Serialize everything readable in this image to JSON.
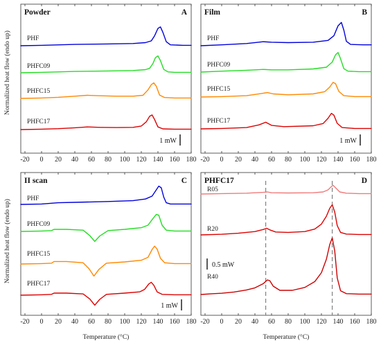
{
  "figure": {
    "ylabel": "Normalized heat flow (endo up)",
    "xlabel": "Temperature (°C)"
  },
  "chart_data": [
    {
      "type": "line",
      "title": "Powder",
      "panel": "A",
      "xlim": [
        -25,
        180
      ],
      "xticks": [
        -20,
        0,
        20,
        40,
        60,
        80,
        100,
        120,
        140,
        160,
        180
      ],
      "scalebar": "1 mW",
      "series": [
        {
          "name": "PHF",
          "color": "#0000dd",
          "x": [
            -25,
            0,
            40,
            80,
            110,
            125,
            132,
            136,
            140,
            143,
            146,
            150,
            155,
            170,
            180
          ],
          "y": [
            0.0,
            0.02,
            0.06,
            0.08,
            0.1,
            0.14,
            0.22,
            0.45,
            0.78,
            0.85,
            0.6,
            0.18,
            0.04,
            0.02,
            0.02
          ]
        },
        {
          "name": "PHFC09",
          "color": "#22dd22",
          "x": [
            -25,
            0,
            40,
            80,
            110,
            125,
            130,
            134,
            137,
            140,
            143,
            147,
            152,
            160,
            180
          ],
          "y": [
            0.0,
            0.02,
            0.06,
            0.08,
            0.1,
            0.14,
            0.2,
            0.42,
            0.68,
            0.76,
            0.55,
            0.15,
            0.04,
            0.02,
            0.02
          ]
        },
        {
          "name": "PHFC15",
          "color": "#ff8800",
          "x": [
            -25,
            0,
            20,
            40,
            55,
            70,
            90,
            110,
            122,
            128,
            132,
            135,
            138,
            142,
            148,
            160,
            180
          ],
          "y": [
            0.0,
            0.02,
            0.05,
            0.1,
            0.14,
            0.12,
            0.1,
            0.1,
            0.14,
            0.38,
            0.62,
            0.7,
            0.55,
            0.15,
            0.04,
            0.02,
            0.02
          ]
        },
        {
          "name": "PHFC17",
          "color": "#dd0000",
          "x": [
            -25,
            0,
            20,
            40,
            55,
            70,
            90,
            110,
            120,
            126,
            130,
            133,
            136,
            140,
            146,
            160,
            180
          ],
          "y": [
            0.0,
            0.02,
            0.04,
            0.08,
            0.12,
            0.1,
            0.09,
            0.1,
            0.16,
            0.35,
            0.6,
            0.66,
            0.45,
            0.12,
            0.03,
            0.02,
            0.02
          ]
        }
      ]
    },
    {
      "type": "line",
      "title": "Film",
      "panel": "B",
      "xlim": [
        -25,
        180
      ],
      "xticks": [
        -20,
        0,
        20,
        40,
        60,
        80,
        100,
        120,
        140,
        160,
        180
      ],
      "scalebar": "1 mW",
      "series": [
        {
          "name": "PHF",
          "color": "#0000dd",
          "x": [
            -25,
            0,
            30,
            50,
            60,
            80,
            110,
            128,
            135,
            140,
            144,
            147,
            150,
            155,
            170,
            180
          ],
          "y": [
            0.0,
            0.04,
            0.1,
            0.18,
            0.16,
            0.14,
            0.16,
            0.24,
            0.45,
            0.9,
            1.05,
            0.7,
            0.2,
            0.06,
            0.04,
            0.04
          ]
        },
        {
          "name": "PHFC09",
          "color": "#22dd22",
          "x": [
            -25,
            0,
            30,
            50,
            60,
            80,
            110,
            126,
            133,
            137,
            140,
            143,
            147,
            152,
            165,
            180
          ],
          "y": [
            0.0,
            0.04,
            0.08,
            0.12,
            0.1,
            0.1,
            0.14,
            0.22,
            0.45,
            0.78,
            0.88,
            0.6,
            0.15,
            0.04,
            0.02,
            0.02
          ]
        },
        {
          "name": "PHFC15",
          "color": "#ff8800",
          "x": [
            -25,
            0,
            30,
            48,
            55,
            62,
            80,
            110,
            124,
            130,
            134,
            137,
            141,
            147,
            160,
            180
          ],
          "y": [
            0.0,
            0.02,
            0.06,
            0.16,
            0.2,
            0.14,
            0.1,
            0.14,
            0.24,
            0.45,
            0.66,
            0.6,
            0.25,
            0.06,
            0.02,
            0.02
          ]
        },
        {
          "name": "PHFC17",
          "color": "#dd0000",
          "x": [
            -25,
            0,
            30,
            45,
            53,
            60,
            75,
            110,
            122,
            128,
            132,
            135,
            139,
            145,
            160,
            180
          ],
          "y": [
            0.0,
            0.02,
            0.06,
            0.18,
            0.3,
            0.16,
            0.1,
            0.14,
            0.24,
            0.48,
            0.7,
            0.62,
            0.25,
            0.06,
            0.02,
            0.02
          ]
        }
      ]
    },
    {
      "type": "line",
      "title": "II scan",
      "panel": "C",
      "xlim": [
        -25,
        180
      ],
      "xticks": [
        -20,
        0,
        20,
        40,
        60,
        80,
        100,
        120,
        140,
        160,
        180
      ],
      "scalebar": "1 mW",
      "series": [
        {
          "name": "PHF",
          "color": "#0000dd",
          "x": [
            -25,
            0,
            20,
            40,
            80,
            110,
            125,
            133,
            138,
            141,
            144,
            147,
            150,
            155,
            170,
            180
          ],
          "y": [
            0.0,
            0.02,
            0.08,
            0.1,
            0.14,
            0.18,
            0.26,
            0.4,
            0.7,
            0.88,
            0.8,
            0.35,
            0.08,
            0.02,
            0.02,
            0.02
          ]
        },
        {
          "name": "PHFC09",
          "color": "#22dd22",
          "x": [
            -25,
            0,
            12,
            15,
            30,
            50,
            58,
            64,
            70,
            80,
            100,
            120,
            128,
            134,
            138,
            141,
            145,
            150,
            160,
            180
          ],
          "y": [
            0.0,
            0.02,
            0.04,
            0.1,
            0.1,
            0.06,
            -0.2,
            -0.48,
            -0.22,
            0.04,
            0.1,
            0.18,
            0.3,
            0.62,
            0.82,
            0.78,
            0.3,
            0.06,
            0.02,
            0.02
          ]
        },
        {
          "name": "PHFC15",
          "color": "#ff8800",
          "x": [
            -25,
            0,
            12,
            15,
            30,
            50,
            57,
            63,
            69,
            78,
            100,
            120,
            128,
            133,
            136,
            139,
            143,
            148,
            160,
            180
          ],
          "y": [
            0.0,
            0.02,
            0.04,
            0.12,
            0.12,
            0.06,
            -0.22,
            -0.58,
            -0.26,
            0.04,
            0.1,
            0.18,
            0.32,
            0.7,
            0.86,
            0.72,
            0.28,
            0.06,
            0.02,
            0.02
          ]
        },
        {
          "name": "PHFC17",
          "color": "#dd0000",
          "x": [
            -25,
            0,
            12,
            15,
            30,
            50,
            58,
            64,
            70,
            78,
            100,
            118,
            124,
            129,
            132,
            135,
            139,
            145,
            160,
            180
          ],
          "y": [
            0.0,
            0.02,
            0.04,
            0.1,
            0.1,
            0.06,
            -0.18,
            -0.48,
            -0.2,
            0.04,
            0.1,
            0.16,
            0.28,
            0.54,
            0.62,
            0.48,
            0.16,
            0.04,
            0.02,
            0.02
          ]
        }
      ]
    },
    {
      "type": "line",
      "title": "PHFC17",
      "panel": "D",
      "xlim": [
        -25,
        180
      ],
      "xticks": [
        -20,
        0,
        20,
        40,
        60,
        80,
        100,
        120,
        140,
        160,
        180
      ],
      "scalebar": "0.5 mW",
      "vlines": [
        53,
        133
      ],
      "series": [
        {
          "name": "R05",
          "color": "#f07a7a",
          "x": [
            -25,
            0,
            30,
            50,
            55,
            60,
            80,
            110,
            122,
            128,
            132,
            134,
            137,
            142,
            150,
            165,
            180
          ],
          "y": [
            0.0,
            0.02,
            0.04,
            0.08,
            0.1,
            0.06,
            0.05,
            0.06,
            0.1,
            0.2,
            0.36,
            0.42,
            0.3,
            0.1,
            0.04,
            0.02,
            0.02
          ]
        },
        {
          "name": "R20",
          "color": "#dd0000",
          "x": [
            -25,
            0,
            20,
            40,
            50,
            54,
            58,
            65,
            80,
            100,
            112,
            120,
            126,
            130,
            133,
            136,
            139,
            143,
            150,
            165,
            180
          ],
          "y": [
            0.0,
            0.03,
            0.08,
            0.16,
            0.26,
            0.32,
            0.24,
            0.14,
            0.12,
            0.16,
            0.28,
            0.52,
            0.9,
            1.28,
            1.45,
            1.1,
            0.45,
            0.12,
            0.04,
            0.02,
            0.02
          ]
        },
        {
          "name": "R40",
          "color": "#cc0000",
          "x": [
            -25,
            -10,
            0,
            15,
            30,
            40,
            50,
            55,
            58,
            62,
            70,
            85,
            100,
            112,
            120,
            126,
            130,
            133,
            136,
            139,
            143,
            150,
            165,
            180
          ],
          "y": [
            0.0,
            0.04,
            0.06,
            0.12,
            0.22,
            0.32,
            0.52,
            0.7,
            0.66,
            0.4,
            0.2,
            0.2,
            0.34,
            0.62,
            1.05,
            1.7,
            2.4,
            2.72,
            2.1,
            0.8,
            0.18,
            0.04,
            0.02,
            0.02
          ]
        }
      ]
    }
  ]
}
